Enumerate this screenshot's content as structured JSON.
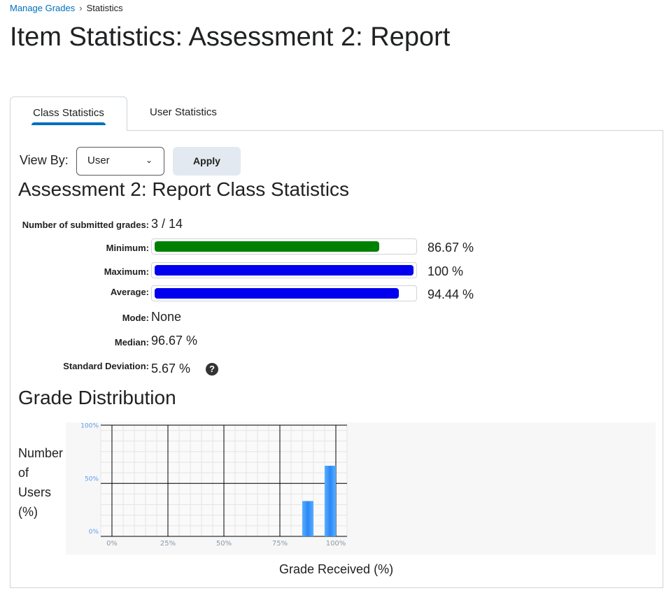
{
  "breadcrumb": {
    "link": "Manage Grades",
    "separator": "›",
    "current": "Statistics"
  },
  "page_title": "Item Statistics: Assessment 2: Report",
  "tabs": [
    {
      "label": "Class Statistics",
      "active": true
    },
    {
      "label": "User Statistics",
      "active": false
    }
  ],
  "view_by": {
    "label": "View By:",
    "selected": "User",
    "apply_label": "Apply"
  },
  "section_title": "Assessment 2: Report Class Statistics",
  "stats": {
    "submitted": {
      "label": "Number of submitted grades:",
      "value": "3 / 14"
    },
    "minimum": {
      "label": "Minimum:",
      "value": "86.67 %",
      "percent": 86.67,
      "color": "#008000"
    },
    "maximum": {
      "label": "Maximum:",
      "value": "100 %",
      "percent": 100,
      "color": "#0000ee"
    },
    "average": {
      "label": "Average:",
      "value": "94.44 %",
      "percent": 94.44,
      "color": "#0000ee"
    },
    "mode": {
      "label": "Mode:",
      "value": "None"
    },
    "median": {
      "label": "Median:",
      "value": "96.67 %"
    },
    "std_dev": {
      "label": "Standard Deviation:",
      "value": "5.67 %",
      "help_icon": "question-circle-icon"
    }
  },
  "distribution_title": "Grade Distribution",
  "chart_data": {
    "type": "bar",
    "xlabel": "Grade Received (%)",
    "ylabel_lines": [
      "Number",
      "of",
      "Users",
      "(%)"
    ],
    "x_ticks": [
      "0%",
      "25%",
      "50%",
      "75%",
      "100%"
    ],
    "x_tick_values": [
      0,
      25,
      50,
      75,
      100
    ],
    "y_ticks": [
      "0%",
      "50%",
      "100%"
    ],
    "y_tick_values": [
      0,
      50,
      100
    ],
    "xlim": [
      -5,
      105
    ],
    "ylim": [
      0,
      105
    ],
    "bars": [
      {
        "from": 85,
        "to": 90,
        "value": 33.33
      },
      {
        "from": 95,
        "to": 100,
        "value": 66.67
      }
    ],
    "bar_color": "#3399ff",
    "grid": true
  }
}
